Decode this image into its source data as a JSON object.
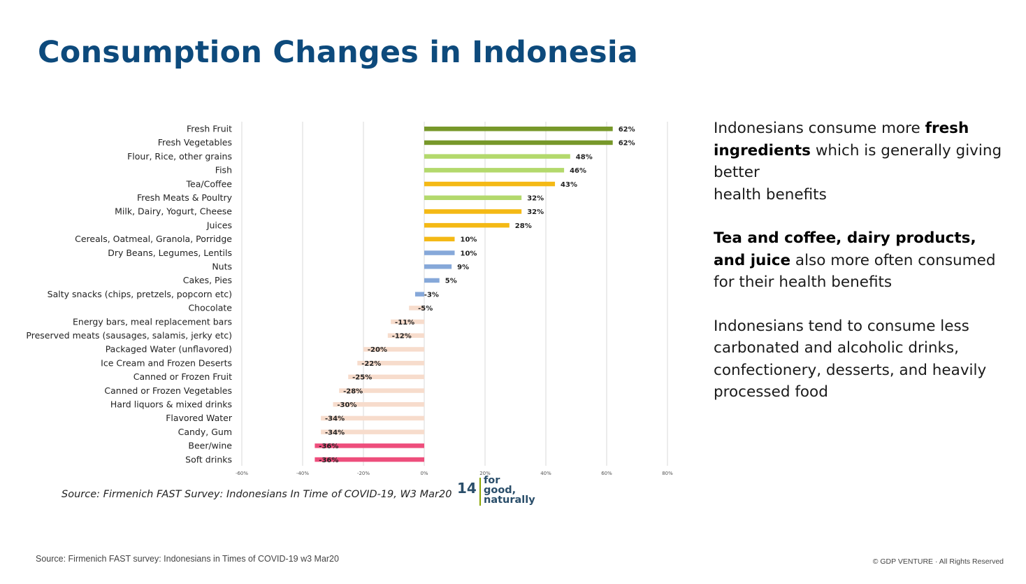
{
  "slide": {
    "title": "Consumption Changes in Indonesia",
    "chart_source": "Source: Firmenich FAST Survey: Indonesians In Time of COVID-19, W3 Mar20",
    "page_number": "14",
    "logo_lines": [
      "for",
      "good,",
      "naturally"
    ],
    "footer_source": "Source: Firmenich FAST survey: Indonesians in Times of COVID-19 w3 Mar20",
    "footer_copyright": "© GDP VENTURE  ·  All Rights Reserved"
  },
  "commentary": {
    "p1": {
      "pre": "Indonesians consume more ",
      "bold": "fresh ingredients",
      "post": " which is generally giving better",
      "line2": "health benefits"
    },
    "p2": {
      "bold": "Tea and coffee, dairy products, and juice",
      "post": " also more often consumed for their health benefits"
    },
    "p3": "Indonesians tend to consume less carbonated and alcoholic drinks, confectionery, desserts, and heavily processed food"
  },
  "colors": {
    "title": "#0d4a7c",
    "dark_green": "#77982a",
    "light_green": "#b3d96c",
    "yellow": "#f4b915",
    "blue": "#86a8d9",
    "peach": "#f7dccc",
    "pink": "#ee4e7c"
  },
  "chart_data": {
    "type": "bar",
    "orientation": "horizontal",
    "title": "",
    "xlabel": "",
    "ylabel": "",
    "xlim": [
      -60,
      80
    ],
    "xticks": [
      "-60%",
      "-40%",
      "-20%",
      "0%",
      "20%",
      "40%",
      "60%",
      "80%"
    ],
    "grid": true,
    "categories": [
      "Fresh Fruit",
      "Fresh Vegetables",
      "Flour, Rice, other grains",
      "Fish",
      "Tea/Coffee",
      "Fresh Meats & Poultry",
      "Milk, Dairy, Yogurt, Cheese",
      "Juices",
      "Cereals, Oatmeal, Granola, Porridge",
      "Dry Beans, Legumes, Lentils",
      "Nuts",
      "Cakes, Pies",
      "Salty snacks (chips, pretzels, popcorn etc)",
      "Chocolate",
      "Energy bars, meal replacement bars",
      "Preserved meats (sausages, salamis, jerky etc)",
      "Packaged Water (unflavored)",
      "Ice Cream and Frozen Deserts",
      "Canned or Frozen Fruit",
      "Canned or Frozen Vegetables",
      "Hard liquors & mixed drinks",
      "Flavored Water",
      "Candy, Gum",
      "Beer/wine",
      "Soft drinks"
    ],
    "values": [
      62,
      62,
      48,
      46,
      43,
      32,
      32,
      28,
      10,
      10,
      9,
      5,
      -3,
      -5,
      -11,
      -12,
      -20,
      -22,
      -25,
      -28,
      -30,
      -34,
      -34,
      -36,
      -36
    ],
    "labels": [
      "62%",
      "62%",
      "48%",
      "46%",
      "43%",
      "32%",
      "32%",
      "28%",
      "10%",
      "10%",
      "9%",
      "5%",
      "-3%",
      "-5%",
      "-11%",
      "-12%",
      "-20%",
      "-22%",
      "-25%",
      "-28%",
      "-30%",
      "-34%",
      "-34%",
      "-36%",
      "-36%"
    ],
    "bar_colors": [
      "dark_green",
      "dark_green",
      "light_green",
      "light_green",
      "yellow",
      "light_green",
      "yellow",
      "yellow",
      "yellow",
      "blue",
      "blue",
      "blue",
      "blue",
      "peach",
      "peach",
      "peach",
      "peach",
      "peach",
      "peach",
      "peach",
      "peach",
      "peach",
      "peach",
      "pink",
      "pink"
    ]
  }
}
